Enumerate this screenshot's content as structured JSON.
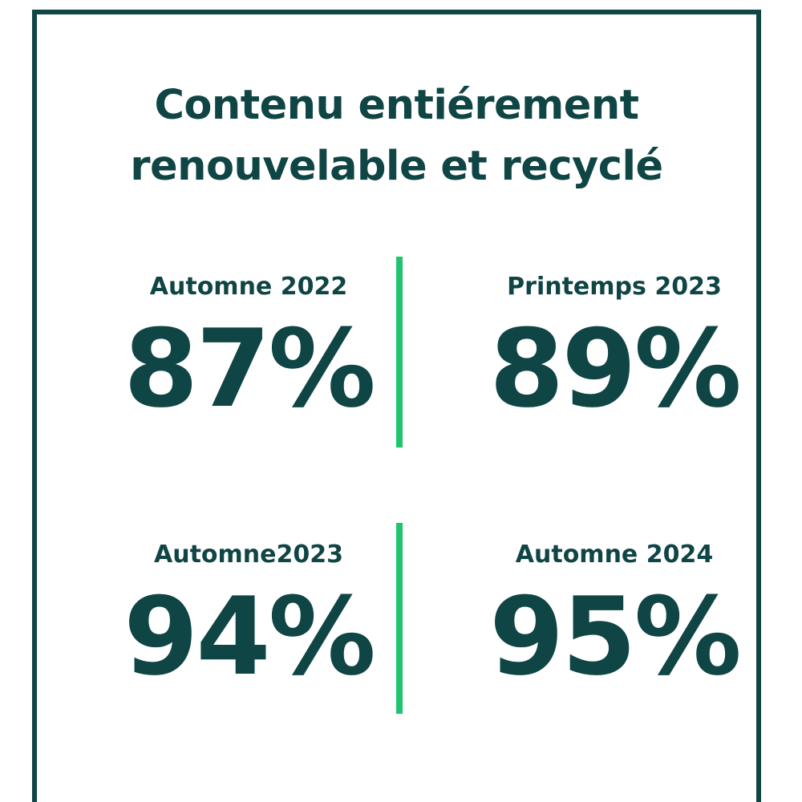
{
  "title": {
    "line1": "Contenu entiérement",
    "line2": "renouvelable et recyclé"
  },
  "stats": [
    {
      "period": "Automne 2022",
      "value": "87%"
    },
    {
      "period": "Printemps 2023",
      "value": "89%"
    },
    {
      "period": "Automne2023",
      "value": "94%"
    },
    {
      "period": "Automne 2024",
      "value": "95%"
    }
  ],
  "colors": {
    "primary": "#0f4544",
    "accent": "#1ec46f",
    "background": "#ffffff"
  }
}
